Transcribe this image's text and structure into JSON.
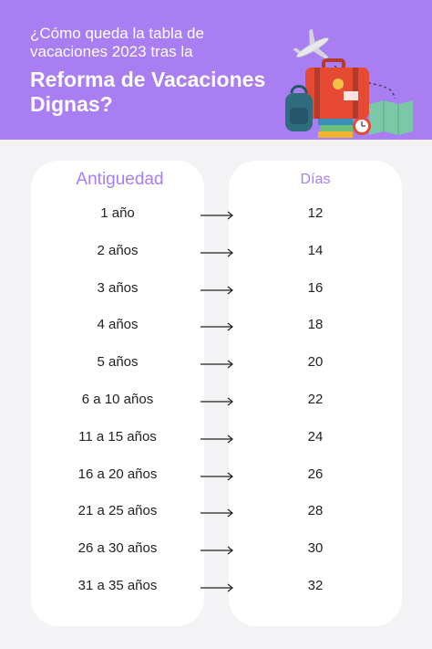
{
  "header": {
    "subtitle": "¿Cómo queda la tabla de vacaciones 2023 tras la",
    "title": "Reforma de Vacaciones Dignas?",
    "bg_color": "#a87ef2"
  },
  "table": {
    "col1_header": "Antiguedad",
    "col2_header": "Días",
    "header_color": "#a87ef2",
    "rows": [
      {
        "antiguedad": "1  año",
        "dias": "12"
      },
      {
        "antiguedad": "2 años",
        "dias": "14"
      },
      {
        "antiguedad": "3 años",
        "dias": "16"
      },
      {
        "antiguedad": "4 años",
        "dias": "18"
      },
      {
        "antiguedad": "5 años",
        "dias": "20"
      },
      {
        "antiguedad": "6 a 10 años",
        "dias": "22"
      },
      {
        "antiguedad": "11 a 15 años",
        "dias": "24"
      },
      {
        "antiguedad": "16 a 20 años",
        "dias": "26"
      },
      {
        "antiguedad": "21 a 25 años",
        "dias": "28"
      },
      {
        "antiguedad": "26 a 30 años",
        "dias": "30"
      },
      {
        "antiguedad": "31 a 35 años",
        "dias": "32"
      }
    ]
  },
  "illustration": {
    "icons": [
      "airplane-icon",
      "suitcase-icon",
      "backpack-icon",
      "books-icon",
      "alarm-clock-icon",
      "map-icon"
    ]
  }
}
